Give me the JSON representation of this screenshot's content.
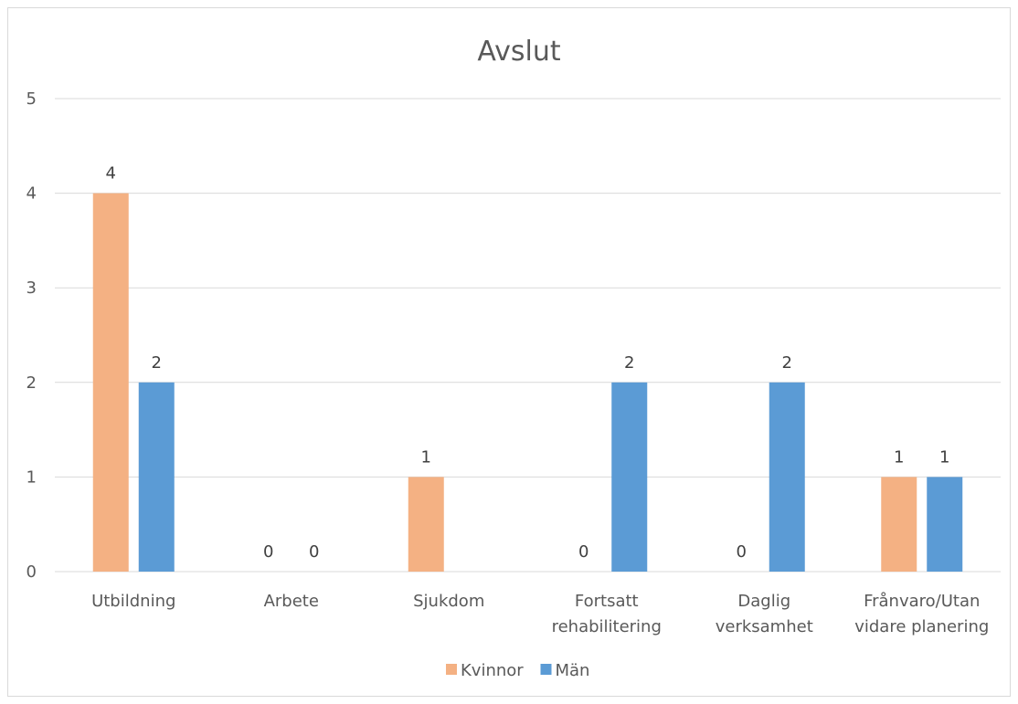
{
  "chart_data": {
    "type": "bar",
    "title": "Avslut",
    "xlabel": "",
    "ylabel": "",
    "ylim": [
      0,
      5
    ],
    "yticks": [
      "0",
      "1",
      "2",
      "3",
      "4",
      "5"
    ],
    "grid": true,
    "legend_position": "bottom",
    "categories": [
      [
        "Utbildning"
      ],
      [
        "Arbete"
      ],
      [
        "Sjukdom"
      ],
      [
        "Fortsatt",
        "rehabilitering"
      ],
      [
        "Daglig",
        "verksamhet"
      ],
      [
        "Frånvaro/Utan",
        "vidare planering"
      ]
    ],
    "series": [
      {
        "name": "Kvinnor",
        "color": "#F4B183",
        "values": [
          4,
          0,
          1,
          0,
          0,
          1
        ]
      },
      {
        "name": "Män",
        "color": "#5B9BD5",
        "values": [
          2,
          0,
          null,
          2,
          2,
          1
        ]
      }
    ]
  }
}
